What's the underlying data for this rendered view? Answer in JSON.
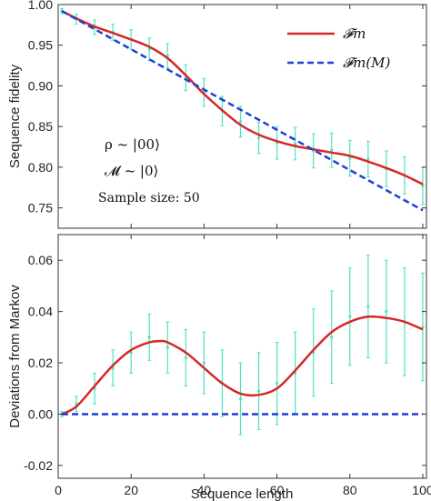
{
  "colors": {
    "model": "#d62728",
    "markov": "#1f3fd6",
    "data": "#4fe3c1",
    "axis": "#333333"
  },
  "chart_data": [
    {
      "type": "line",
      "title": "",
      "xlabel": "",
      "ylabel": "Sequence fidelity",
      "xlim": [
        0,
        101
      ],
      "ylim": [
        0.725,
        1.0
      ],
      "xticks": [
        "0",
        "20",
        "40",
        "60",
        "80",
        "100"
      ],
      "yticks": [
        "0.75",
        "0.80",
        "0.85",
        "0.90",
        "0.95",
        "1.00"
      ],
      "grid": false,
      "legend_position": "top-right",
      "legend": [
        "𝓕m",
        "𝓕m(M)"
      ],
      "annotations": [
        "ρ ~ |00⟩",
        "𝓜 ~ |0⟩",
        "Sample size:  50"
      ],
      "series": [
        {
          "name": "𝓕m",
          "style": "solid",
          "x": [
            1,
            5,
            10,
            15,
            20,
            25,
            30,
            35,
            40,
            45,
            50,
            55,
            60,
            65,
            70,
            75,
            80,
            85,
            90,
            95,
            100
          ],
          "y": [
            0.992,
            0.983,
            0.973,
            0.965,
            0.957,
            0.948,
            0.934,
            0.913,
            0.89,
            0.87,
            0.852,
            0.84,
            0.832,
            0.826,
            0.822,
            0.818,
            0.814,
            0.807,
            0.799,
            0.79,
            0.779
          ]
        },
        {
          "name": "𝓕m(M)",
          "style": "dashed",
          "x": [
            1,
            100
          ],
          "y": [
            0.992,
            0.747
          ]
        },
        {
          "name": "",
          "style": "errorbar",
          "x": [
            1,
            5,
            10,
            15,
            20,
            25,
            30,
            35,
            40,
            45,
            50,
            55,
            60,
            65,
            70,
            75,
            80,
            85,
            90,
            95,
            100
          ],
          "y": [
            0.992,
            0.982,
            0.972,
            0.966,
            0.957,
            0.945,
            0.937,
            0.91,
            0.892,
            0.869,
            0.856,
            0.836,
            0.83,
            0.829,
            0.82,
            0.821,
            0.811,
            0.81,
            0.798,
            0.79,
            0.777
          ],
          "err": [
            0.003,
            0.006,
            0.009,
            0.01,
            0.012,
            0.014,
            0.015,
            0.016,
            0.017,
            0.018,
            0.019,
            0.019,
            0.02,
            0.02,
            0.021,
            0.021,
            0.022,
            0.022,
            0.022,
            0.023,
            0.023
          ]
        }
      ]
    },
    {
      "type": "line",
      "title": "",
      "xlabel": "Sequence length",
      "ylabel": "Deviations from Markov",
      "xlim": [
        0,
        101
      ],
      "ylim": [
        -0.025,
        0.07
      ],
      "xticks": [
        "0",
        "20",
        "40",
        "60",
        "80",
        "100"
      ],
      "yticks": [
        "-0.02",
        "0.00",
        "0.02",
        "0.04",
        "0.06"
      ],
      "grid": false,
      "series": [
        {
          "name": "",
          "style": "solid",
          "x": [
            1,
            5,
            10,
            15,
            20,
            25,
            28,
            30,
            35,
            40,
            45,
            50,
            55,
            60,
            65,
            70,
            75,
            80,
            85,
            90,
            95,
            100
          ],
          "y": [
            0.0,
            0.003,
            0.011,
            0.019,
            0.025,
            0.028,
            0.0285,
            0.028,
            0.024,
            0.018,
            0.012,
            0.008,
            0.0075,
            0.01,
            0.017,
            0.025,
            0.032,
            0.036,
            0.038,
            0.0375,
            0.036,
            0.033
          ]
        },
        {
          "name": "",
          "style": "dashed",
          "x": [
            1,
            100
          ],
          "y": [
            0.0,
            0.0
          ]
        },
        {
          "name": "",
          "style": "errorbar",
          "x": [
            1,
            5,
            10,
            15,
            20,
            25,
            30,
            35,
            40,
            45,
            50,
            55,
            60,
            65,
            70,
            75,
            80,
            85,
            90,
            95,
            100
          ],
          "y": [
            0.0,
            0.004,
            0.01,
            0.018,
            0.024,
            0.03,
            0.026,
            0.022,
            0.02,
            0.012,
            0.006,
            0.009,
            0.012,
            0.016,
            0.024,
            0.03,
            0.038,
            0.042,
            0.04,
            0.036,
            0.034
          ],
          "err": [
            0.001,
            0.003,
            0.006,
            0.007,
            0.008,
            0.009,
            0.01,
            0.011,
            0.012,
            0.013,
            0.014,
            0.015,
            0.016,
            0.016,
            0.017,
            0.018,
            0.019,
            0.02,
            0.02,
            0.021,
            0.021
          ]
        }
      ]
    }
  ]
}
